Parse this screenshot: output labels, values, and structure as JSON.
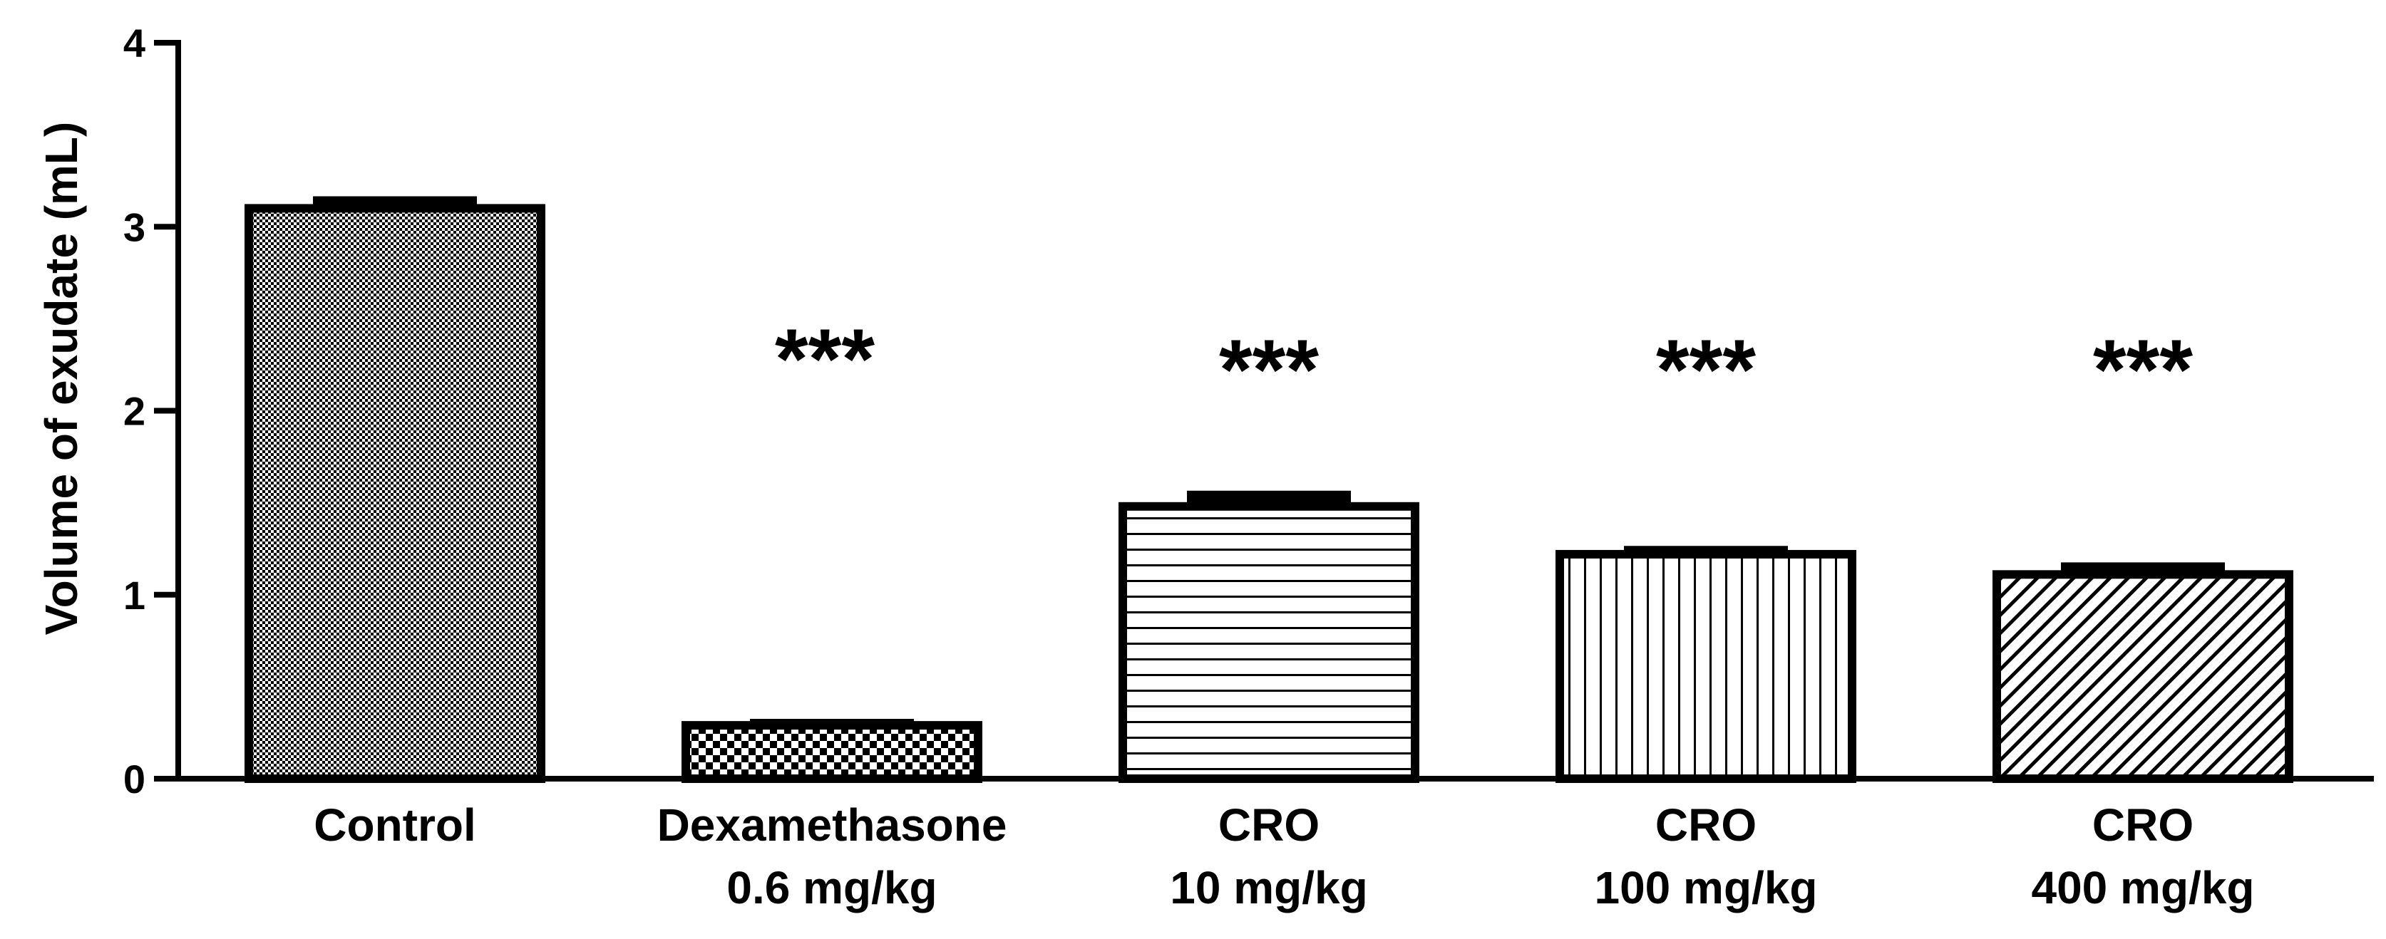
{
  "chart_data": {
    "type": "bar",
    "title": "",
    "xlabel": "",
    "ylabel": "Volume of exudate (mL)",
    "ylim": [
      0,
      4
    ],
    "yticks": [
      "0",
      "1",
      "2",
      "3",
      "4"
    ],
    "grid": false,
    "categories": [
      [
        "Control"
      ],
      [
        "Dexamethasone",
        "0.6 mg/kg"
      ],
      [
        "CRO",
        "10 mg/kg"
      ],
      [
        "CRO",
        "100 mg/kg"
      ],
      [
        "CRO",
        "400 mg/kg"
      ]
    ],
    "values": [
      3.1,
      0.29,
      1.48,
      1.22,
      1.11
    ],
    "errors": [
      0.05,
      0.02,
      0.07,
      0.03,
      0.05
    ],
    "patterns": [
      "fine-dots",
      "checker",
      "horizontal-lines",
      "vertical-lines",
      "diagonal-lines"
    ],
    "annotations": [
      "",
      "***",
      "***",
      "***",
      "***"
    ],
    "colors": {
      "ink": "#000000",
      "background": "#ffffff"
    }
  }
}
